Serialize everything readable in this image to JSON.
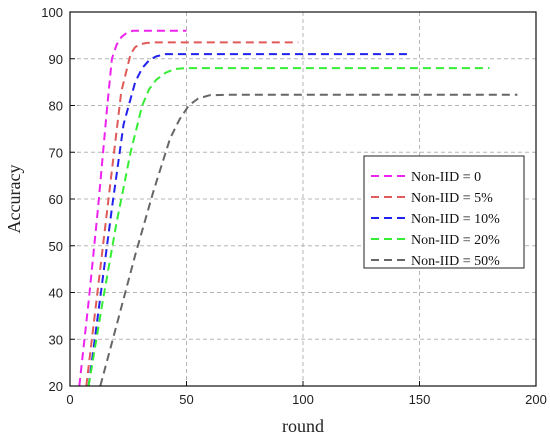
{
  "chart_data": {
    "type": "line",
    "title": "",
    "xlabel": "round",
    "ylabel": "Accuracy",
    "xlim": [
      0,
      200
    ],
    "ylim": [
      20,
      100
    ],
    "x_ticks": [
      "0",
      "50",
      "100",
      "150",
      "200"
    ],
    "y_ticks": [
      "20",
      "30",
      "40",
      "50",
      "60",
      "70",
      "80",
      "90",
      "100"
    ],
    "grid": true,
    "legend_position": "center-right",
    "line_style": "dashed",
    "series": [
      {
        "name": "Non-IID = 0",
        "color": "#ee22ee",
        "x": [
          4,
          8,
          12,
          16,
          18,
          20,
          22,
          24,
          27,
          30,
          35,
          40,
          45,
          50
        ],
        "y": [
          20,
          38,
          58,
          80,
          90,
          93,
          94.6,
          95.4,
          96,
          96,
          96,
          96,
          96,
          96
        ]
      },
      {
        "name": "Non-IID = 5%",
        "color": "#e05a5a",
        "x": [
          7,
          12,
          17,
          22,
          26,
          28,
          30,
          33,
          36,
          40,
          60,
          80,
          98
        ],
        "y": [
          20,
          41,
          62,
          83,
          91,
          92.5,
          93.1,
          93.4,
          93.5,
          93.5,
          93.5,
          93.5,
          93.5
        ]
      },
      {
        "name": "Non-IID = 10%",
        "color": "#2222ee",
        "x": [
          8,
          13,
          18,
          23,
          28,
          31,
          34,
          37,
          41,
          45,
          70,
          100,
          125,
          146
        ],
        "y": [
          20,
          39,
          58,
          76,
          85,
          88,
          89.7,
          90.5,
          91,
          91,
          91,
          91,
          91,
          91
        ]
      },
      {
        "name": "Non-IID = 20%",
        "color": "#33ee33",
        "x": [
          8,
          14,
          20,
          26,
          31,
          34,
          37,
          41,
          45,
          50,
          80,
          120,
          150,
          180
        ],
        "y": [
          20,
          38,
          55,
          70,
          80,
          83.5,
          85.5,
          87,
          87.8,
          88,
          88,
          88,
          88,
          88
        ]
      },
      {
        "name": "Non-IID = 50%",
        "color": "#666666",
        "x": [
          13,
          20,
          28,
          36,
          43,
          47,
          51,
          55,
          60,
          70,
          100,
          140,
          170,
          192
        ],
        "y": [
          20,
          33,
          48,
          62,
          73,
          77,
          80,
          81.5,
          82.2,
          82.3,
          82.3,
          82.3,
          82.3,
          82.3
        ]
      }
    ]
  }
}
